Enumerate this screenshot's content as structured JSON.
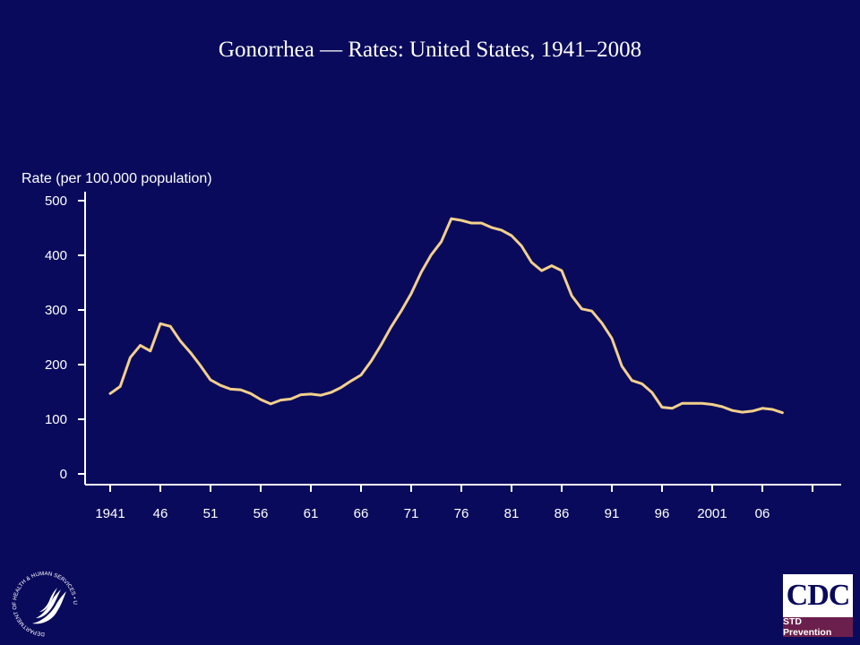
{
  "chart_data": {
    "type": "line",
    "title": "Gonorrhea — Rates: United States, 1941–2008",
    "ylabel": "Rate (per 100,000 population)",
    "xlabel": "",
    "ylim": [
      0,
      500
    ],
    "xlim": [
      1941,
      2012
    ],
    "y_ticks": [
      0,
      100,
      200,
      300,
      400,
      500
    ],
    "x_tick_labels": [
      {
        "year": 1941,
        "label": "1941"
      },
      {
        "year": 1946,
        "label": "46"
      },
      {
        "year": 1951,
        "label": "51"
      },
      {
        "year": 1956,
        "label": "56"
      },
      {
        "year": 1961,
        "label": "61"
      },
      {
        "year": 1966,
        "label": "66"
      },
      {
        "year": 1971,
        "label": "71"
      },
      {
        "year": 1976,
        "label": "76"
      },
      {
        "year": 1981,
        "label": "81"
      },
      {
        "year": 1986,
        "label": "86"
      },
      {
        "year": 1991,
        "label": "91"
      },
      {
        "year": 1996,
        "label": "96"
      },
      {
        "year": 2001,
        "label": "2001"
      },
      {
        "year": 2006,
        "label": "06"
      }
    ],
    "x_minor_tick_years": [
      2011
    ],
    "grid": false,
    "line_color": "#f2d08c",
    "series": [
      {
        "x": [
          1941,
          1942,
          1943,
          1944,
          1945,
          1946,
          1947,
          1948,
          1949,
          1950,
          1951,
          1952,
          1953,
          1954,
          1955,
          1956,
          1957,
          1958,
          1959,
          1960,
          1961,
          1962,
          1963,
          1964,
          1965,
          1966,
          1967,
          1968,
          1969,
          1970,
          1971,
          1972,
          1973,
          1974,
          1975,
          1976,
          1977,
          1978,
          1979,
          1980,
          1981,
          1982,
          1983,
          1984,
          1985,
          1986,
          1987,
          1988,
          1989,
          1990,
          1991,
          1992,
          1993,
          1994,
          1995,
          1996,
          1997,
          1998,
          1999,
          2000,
          2001,
          2002,
          2003,
          2004,
          2005,
          2006,
          2007,
          2008
        ],
        "values": [
          147,
          160,
          213,
          235,
          225,
          275,
          270,
          243,
          222,
          198,
          172,
          162,
          155,
          154,
          147,
          136,
          128,
          135,
          137,
          145,
          146,
          144,
          149,
          158,
          170,
          181,
          206,
          236,
          269,
          298,
          330,
          369,
          401,
          425,
          467,
          464,
          459,
          459,
          451,
          446,
          436,
          417,
          387,
          372,
          381,
          372,
          326,
          302,
          298,
          276,
          248,
          197,
          171,
          165,
          149,
          122,
          120,
          129,
          129,
          129,
          127,
          123,
          116,
          113,
          115,
          120,
          118,
          112
        ]
      }
    ]
  },
  "logos": {
    "hhs_icon": "hhs-eagle-seal-icon",
    "hhs_seal_text": "DEPARTMENT OF HEALTH & HUMAN SERVICES • USA",
    "cdc_text": "CDC",
    "cdc_subtext": "STD Prevention"
  }
}
